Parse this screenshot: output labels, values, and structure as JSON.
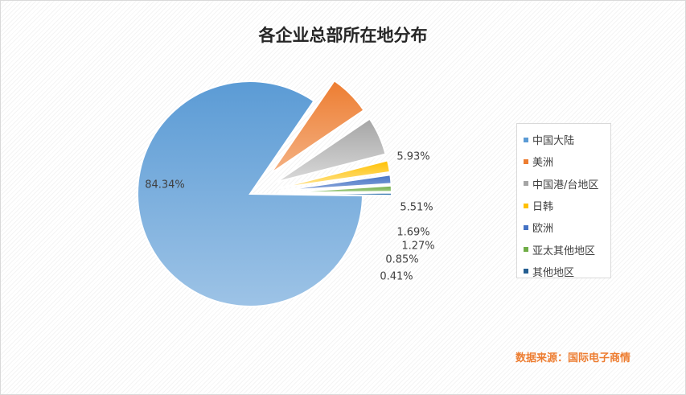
{
  "chart_data": {
    "type": "pie",
    "title": "各企业总部所在地分布",
    "categories": [
      "中国大陆",
      "美洲",
      "中国港/台地区",
      "日韩",
      "欧洲",
      "亚太其他地区",
      "其他地区"
    ],
    "values": [
      84.34,
      5.93,
      5.51,
      1.69,
      1.27,
      0.85,
      0.41
    ],
    "data_labels": [
      "84.34%",
      "5.93%",
      "5.51%",
      "1.69%",
      "1.27%",
      "0.85%",
      "0.41%"
    ],
    "colors": [
      "#5b9bd5",
      "#ed7d31",
      "#a5a5a5",
      "#ffc000",
      "#4472c4",
      "#70ad47",
      "#255e91"
    ],
    "legend_position": "right",
    "grid": false
  },
  "source_note": "数据来源：国际电子商情"
}
